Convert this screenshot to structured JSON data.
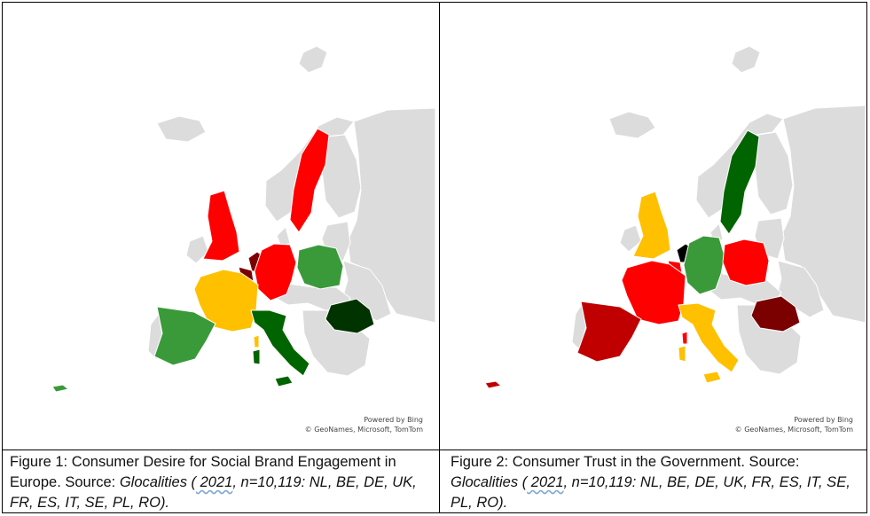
{
  "colors": {
    "land": "#dcdcdc",
    "border": "#ffffff",
    "red": "#ff0000",
    "dark_red": "#7b0000",
    "crimson": "#c00000",
    "green": "#3a9a3a",
    "dark_green": "#006400",
    "darkest_green": "#003300",
    "yellow": "#ffc000",
    "black": "#000000"
  },
  "attribution": {
    "powered_by": "Powered by Bing",
    "credits": "© GeoNames, Microsoft, TomTom"
  },
  "maps": [
    {
      "id": "figure1",
      "country_colors": {
        "NL": "dark_red",
        "BE": "dark_red",
        "DE": "red",
        "UK": "red",
        "FR": "yellow",
        "ES": "green",
        "IT": "dark_green",
        "SE": "red",
        "PL": "green",
        "RO": "darkest_green"
      },
      "caption": {
        "prefix": "Figure 1: Consumer Desire for Social Brand Engagement in Europe. Source: ",
        "source": "Glocalities",
        "open": " (",
        "year": " 2021",
        "rest": ", n=10,119: NL, BE, DE, UK, FR, ES, IT, SE, PL, RO)."
      }
    },
    {
      "id": "figure2",
      "country_colors": {
        "NL": "black",
        "BE": "red",
        "DE": "green",
        "UK": "yellow",
        "FR": "red",
        "ES": "crimson",
        "IT": "yellow",
        "SE": "dark_green",
        "PL": "red",
        "RO": "dark_red"
      },
      "caption": {
        "prefix": "Figure 2: Consumer Trust in the Government. Source: ",
        "source": "Glocalities",
        "open": " (",
        "year": " 2021",
        "rest": ", n=10,119: NL, BE, DE, UK, FR, ES, IT, SE, PL, RO)."
      }
    }
  ]
}
